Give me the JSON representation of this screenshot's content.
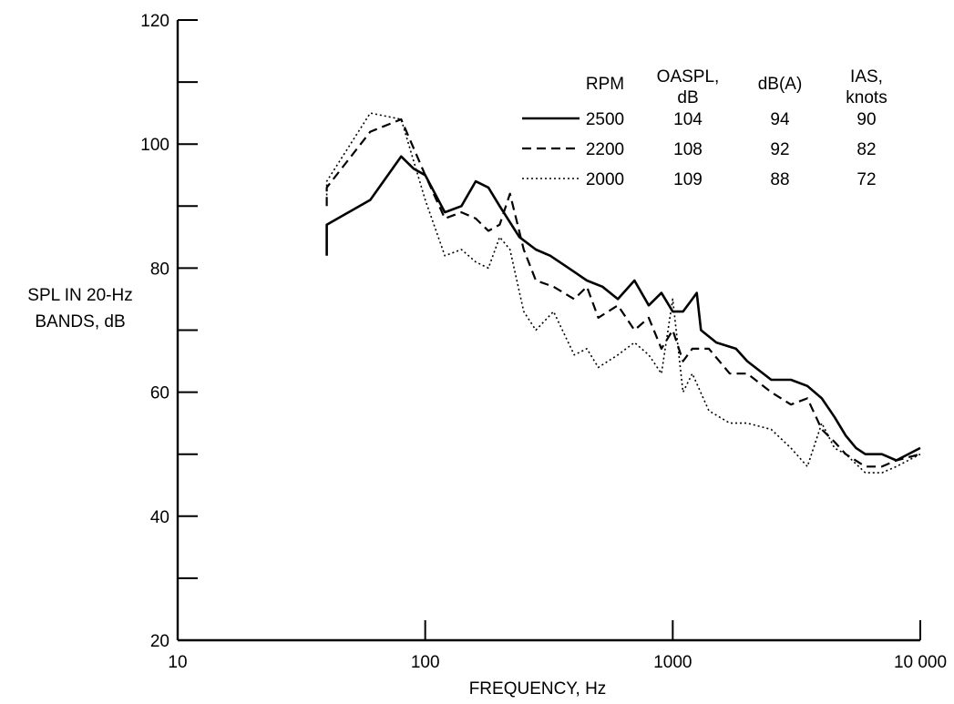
{
  "chart_data": {
    "type": "line",
    "xlabel": "FREQUENCY, Hz",
    "ylabel_lines": [
      "SPL IN 20-Hz",
      "BANDS, dB"
    ],
    "xscale": "log",
    "xlim": [
      10,
      10000
    ],
    "ylim": [
      20,
      120
    ],
    "x_ticks": [
      10,
      100,
      1000,
      10000
    ],
    "x_tick_labels": [
      "10",
      "100",
      "1000",
      "10 000"
    ],
    "y_ticks": [
      20,
      30,
      40,
      50,
      60,
      70,
      80,
      90,
      100,
      110,
      120
    ],
    "y_tick_labels": [
      "20",
      "",
      "40",
      "",
      "60",
      "",
      "80",
      "",
      "100",
      "",
      "120"
    ],
    "grid": false,
    "legend": {
      "placement": "top-right",
      "headers": [
        {
          "key": "rpm",
          "lines": [
            "RPM"
          ]
        },
        {
          "key": "oaspl",
          "lines": [
            "OASPL,",
            "dB"
          ]
        },
        {
          "key": "dba",
          "lines": [
            "dB(A)"
          ]
        },
        {
          "key": "ias",
          "lines": [
            "IAS,",
            "knots"
          ]
        }
      ]
    },
    "series": [
      {
        "name": "2500",
        "oaspl": "104",
        "dba": "94",
        "ias": "90",
        "style": "solid",
        "x": [
          40,
          40,
          60,
          80,
          90,
          100,
          120,
          140,
          160,
          180,
          200,
          240,
          280,
          320,
          380,
          450,
          520,
          600,
          700,
          800,
          900,
          1000,
          1100,
          1200,
          1250,
          1300,
          1500,
          1800,
          2000,
          2500,
          3000,
          3500,
          4000,
          4500,
          5000,
          5500,
          6000,
          7000,
          8000,
          10000
        ],
        "y": [
          82,
          87,
          91,
          98,
          96,
          95,
          89,
          90,
          94,
          93,
          90,
          85,
          83,
          82,
          80,
          78,
          77,
          75,
          78,
          74,
          76,
          73,
          73,
          75,
          76,
          70,
          68,
          67,
          65,
          62,
          62,
          61,
          59,
          56,
          53,
          51,
          50,
          50,
          49,
          51
        ]
      },
      {
        "name": "2200",
        "oaspl": "108",
        "dba": "92",
        "ias": "82",
        "style": "dashed",
        "x": [
          40,
          40,
          60,
          80,
          100,
          120,
          140,
          160,
          180,
          200,
          220,
          250,
          280,
          330,
          400,
          450,
          500,
          600,
          700,
          800,
          900,
          1000,
          1100,
          1200,
          1400,
          1700,
          2000,
          2500,
          3000,
          3500,
          4000,
          4500,
          5000,
          6000,
          7000,
          8000,
          10000
        ],
        "y": [
          90,
          93,
          102,
          104,
          95,
          88,
          89,
          88,
          86,
          87,
          92,
          83,
          78,
          77,
          75,
          77,
          72,
          74,
          70,
          72,
          67,
          70,
          65,
          67,
          67,
          63,
          63,
          60,
          58,
          59,
          54,
          52,
          50,
          48,
          48,
          49,
          50
        ]
      },
      {
        "name": "2000",
        "oaspl": "109",
        "dba": "88",
        "ias": "72",
        "style": "dotted",
        "x": [
          40,
          40,
          60,
          80,
          100,
          120,
          140,
          160,
          180,
          200,
          220,
          250,
          280,
          330,
          400,
          450,
          500,
          600,
          700,
          800,
          900,
          1000,
          1100,
          1200,
          1400,
          1700,
          2000,
          2500,
          3000,
          3500,
          4000,
          4500,
          5000,
          6000,
          7000,
          8000,
          10000
        ],
        "y": [
          91,
          94,
          105,
          104,
          91,
          82,
          83,
          81,
          80,
          85,
          83,
          73,
          70,
          73,
          66,
          67,
          64,
          66,
          68,
          66,
          63,
          75,
          60,
          63,
          57,
          55,
          55,
          54,
          51,
          48,
          55,
          51,
          50,
          47,
          47,
          48,
          50
        ]
      }
    ]
  }
}
